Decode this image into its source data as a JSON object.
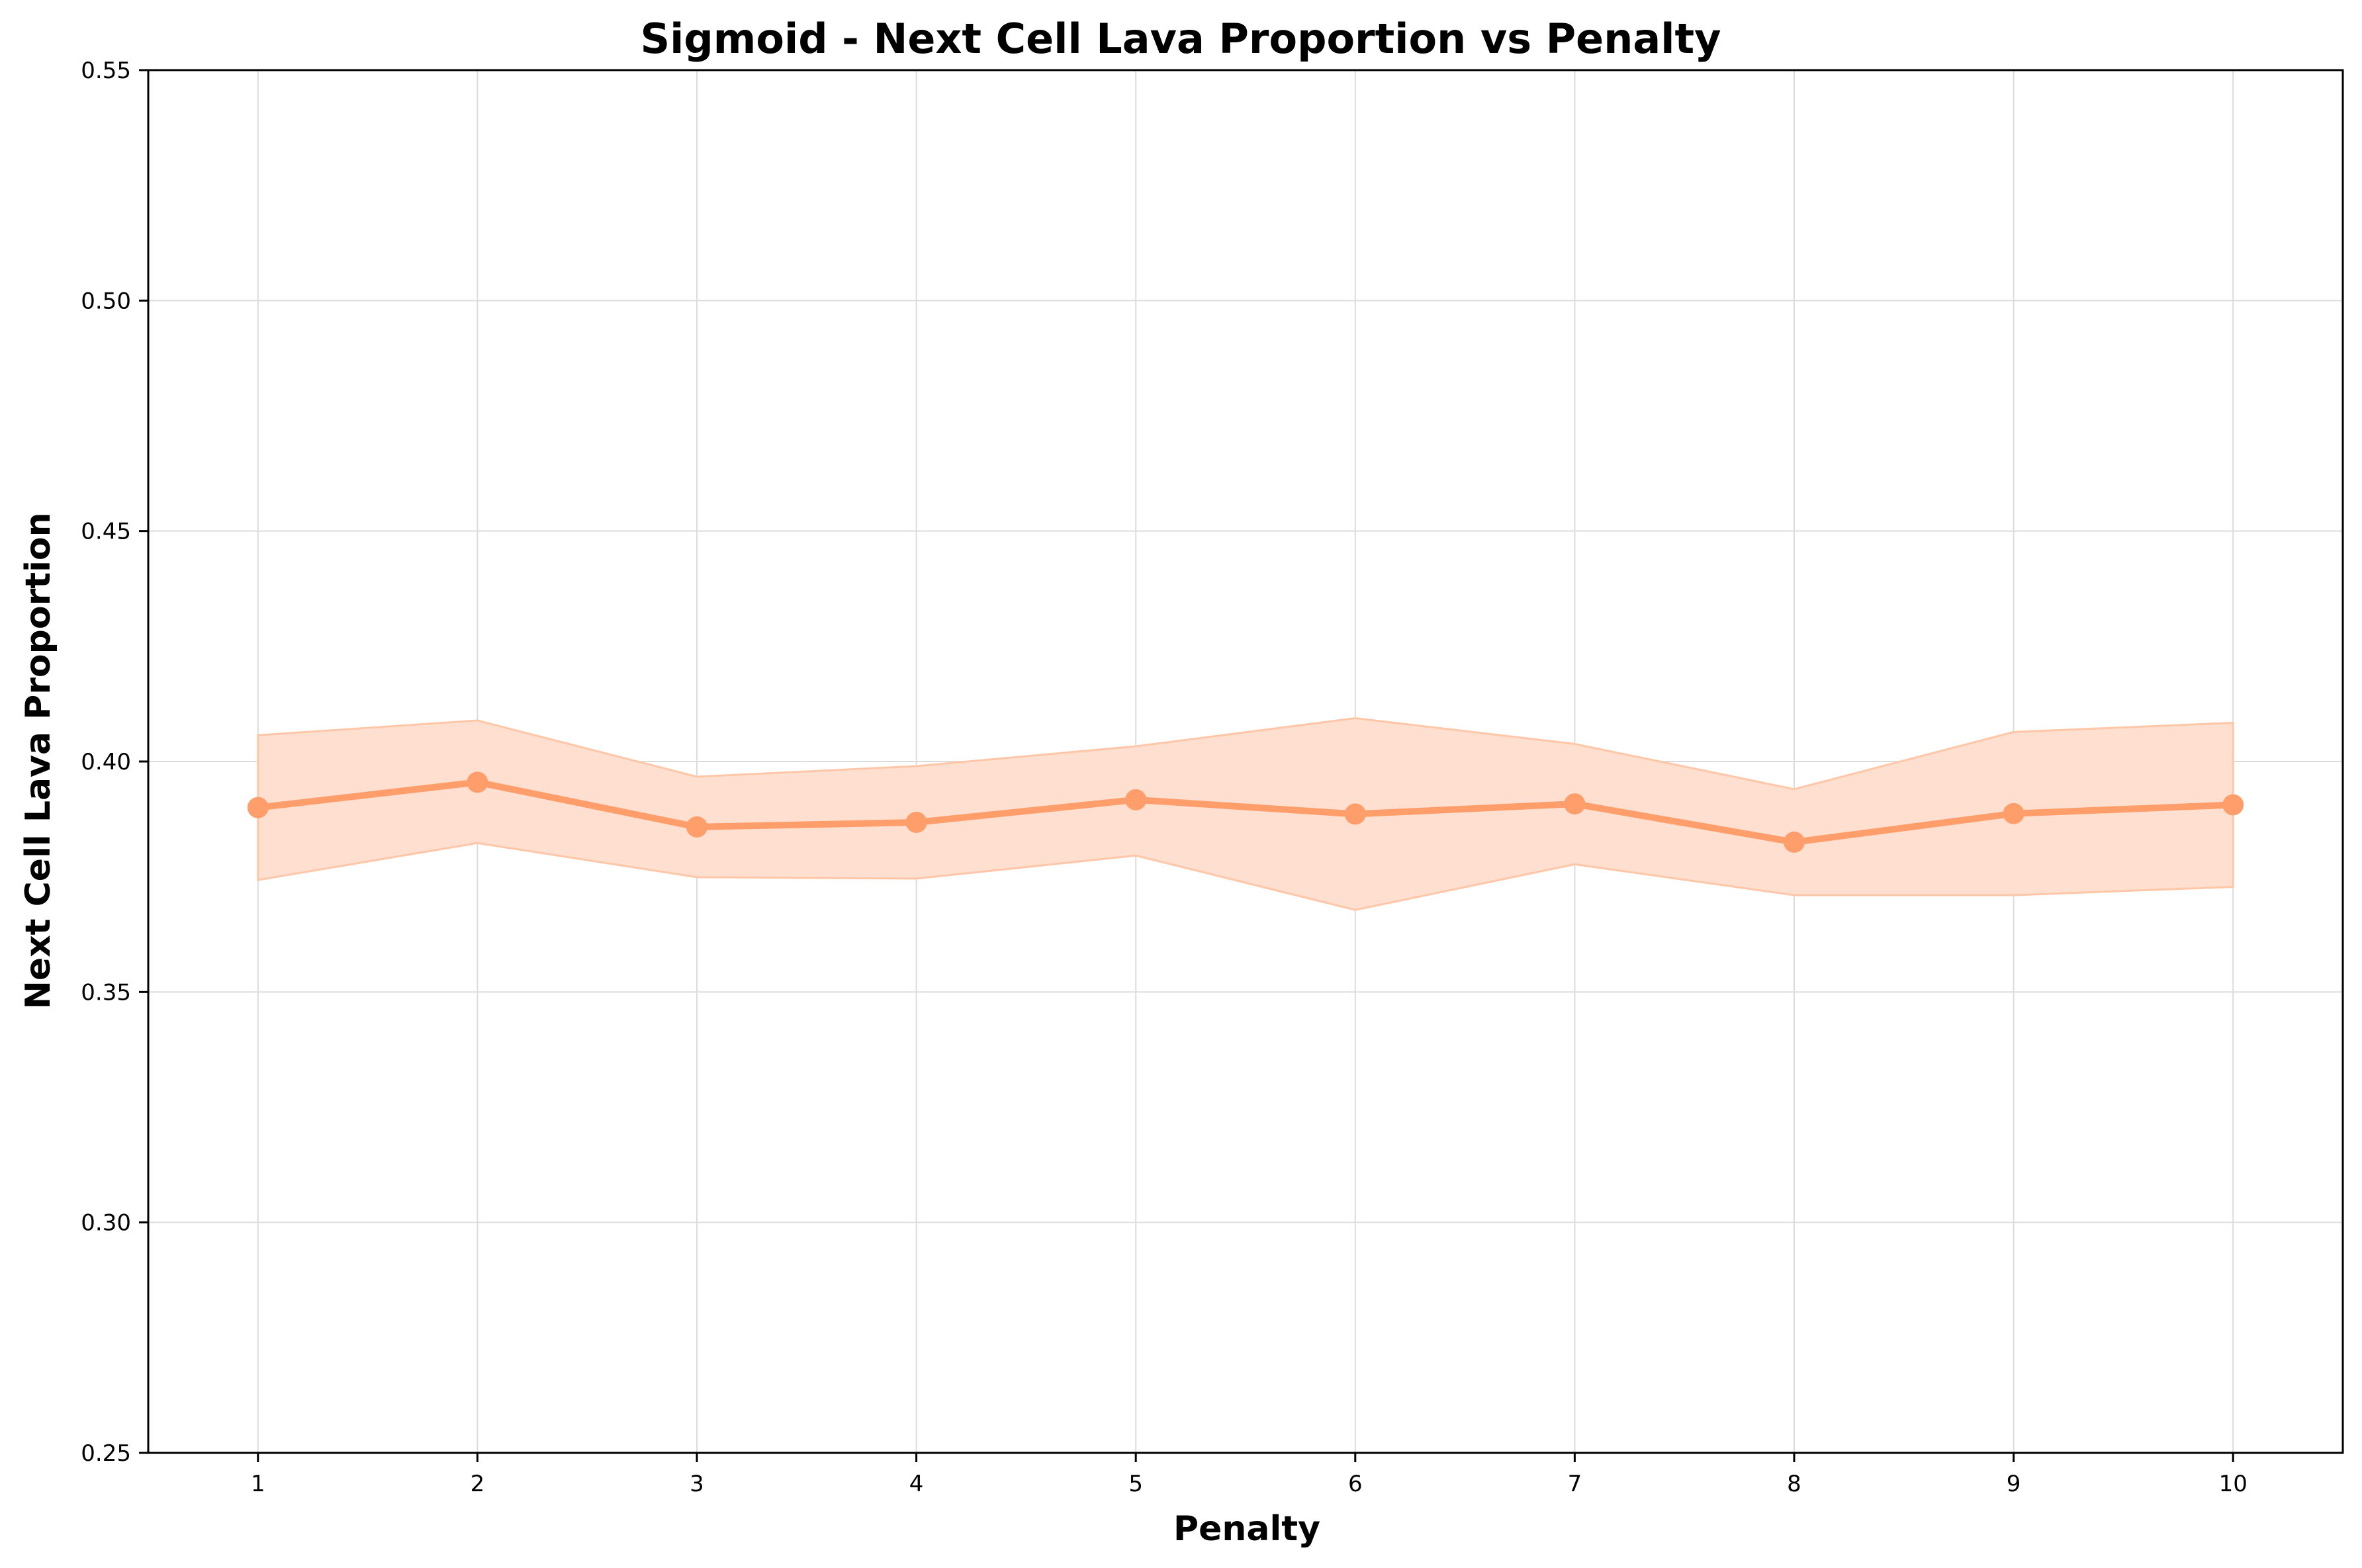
{
  "chart_data": {
    "type": "line",
    "title": "Sigmoid - Next Cell Lava Proportion vs Penalty",
    "xlabel": "Penalty",
    "ylabel": "Next Cell Lava Proportion",
    "x": [
      1,
      2,
      3,
      4,
      5,
      6,
      7,
      8,
      9,
      10
    ],
    "x_ticks": [
      "1",
      "2",
      "3",
      "4",
      "5",
      "6",
      "7",
      "8",
      "9",
      "10"
    ],
    "xlim": [
      0.5,
      10.5
    ],
    "ylim": [
      0.25,
      0.55
    ],
    "y_ticks": [
      "0.25",
      "0.30",
      "0.35",
      "0.40",
      "0.45",
      "0.50",
      "0.55"
    ],
    "grid": true,
    "series": [
      {
        "values": [
          0.39,
          0.3955,
          0.3858,
          0.3868,
          0.3917,
          0.3886,
          0.3908,
          0.3825,
          0.3887,
          0.3906
        ],
        "band_upper": [
          0.4057,
          0.4089,
          0.3967,
          0.399,
          0.4033,
          0.4094,
          0.4038,
          0.394,
          0.4064,
          0.4084
        ],
        "band_lower": [
          0.3743,
          0.3823,
          0.3749,
          0.3746,
          0.3796,
          0.3678,
          0.3777,
          0.371,
          0.371,
          0.3728
        ],
        "color": "#ff9e6b",
        "band_color": "#ffdfcf"
      }
    ]
  }
}
